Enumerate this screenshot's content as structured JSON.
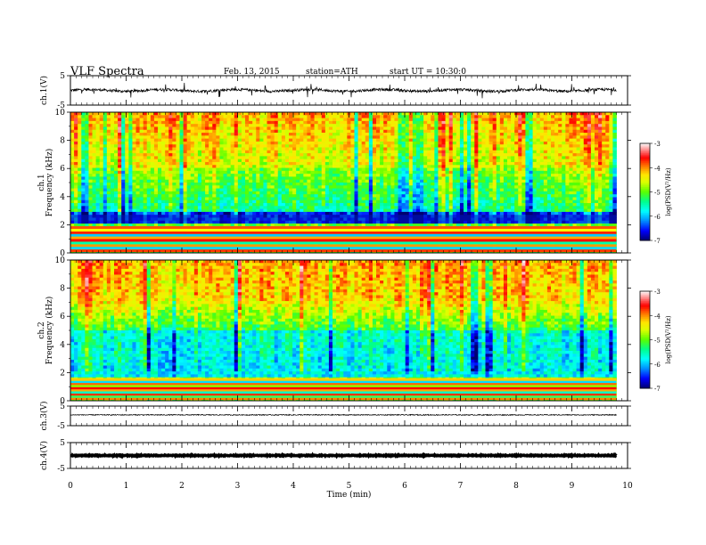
{
  "header": {
    "title": "VLF  Spectra",
    "date": "Feb. 13, 2015",
    "station": "station=ATH",
    "start": "start  UT =   10:30:0"
  },
  "chart_data": [
    {
      "type": "line",
      "panel": "ch1-waveform",
      "ylabel": "ch.1(V)",
      "ylim": [
        -5,
        5
      ],
      "yticks": [
        "5",
        "-5"
      ],
      "xlim": [
        0,
        10
      ],
      "series": [
        {
          "values_summary": "noisy waveform centered near 0 V, mostly within ±1 V, spikes to about ±2.5 V",
          "color": "#000000"
        }
      ]
    },
    {
      "type": "heatmap",
      "panel": "ch1-spectrogram",
      "ylabel": "Frequency  (kHz)",
      "channel_label": "ch.1",
      "ylim": [
        0,
        10
      ],
      "yticks": [
        "0",
        "2",
        "4",
        "6",
        "8",
        "10"
      ],
      "xlim": [
        0,
        10
      ],
      "data_end_min": 9.8,
      "colorbar": {
        "label": "log(PSD(V²/Hz)",
        "range": [
          -7,
          -3
        ],
        "ticks": [
          "-3",
          "-4",
          "-5",
          "-6",
          "-7"
        ]
      },
      "description_bands": [
        {
          "freq_khz": [
            0,
            1.8
          ],
          "level": "horizontal lines, mixed orange/cyan/red"
        },
        {
          "freq_khz": [
            1.8,
            3
          ],
          "level": -6.5
        },
        {
          "freq_khz": [
            3,
            6
          ],
          "level": -5.5
        },
        {
          "freq_khz": [
            6,
            10
          ],
          "level": -4.2
        }
      ]
    },
    {
      "type": "heatmap",
      "panel": "ch2-spectrogram",
      "ylabel": "Frequency  (kHz)",
      "channel_label": "ch.2",
      "ylim": [
        0,
        10
      ],
      "yticks": [
        "0",
        "2",
        "4",
        "6",
        "8",
        "10"
      ],
      "xlim": [
        0,
        10
      ],
      "data_end_min": 9.8,
      "colorbar": {
        "label": "log(PSD(V²/Hz)",
        "range": [
          -7,
          -3
        ],
        "ticks": [
          "-3",
          "-4",
          "-5",
          "-6",
          "-7"
        ]
      },
      "description_bands": [
        {
          "freq_khz": [
            0,
            1.5
          ],
          "level": "horizontal lines, orange/green/red"
        },
        {
          "freq_khz": [
            1.5,
            5
          ],
          "level": -5.8
        },
        {
          "freq_khz": [
            5,
            7
          ],
          "level": -5
        },
        {
          "freq_khz": [
            7,
            10
          ],
          "level": -4
        }
      ]
    },
    {
      "type": "line",
      "panel": "ch3-waveform",
      "ylabel": "ch.3(V)",
      "ylim": [
        -5,
        5
      ],
      "yticks": [
        "5",
        "-5"
      ],
      "xlim": [
        0,
        10
      ],
      "series": [
        {
          "values_summary": "flat trace near +0.5 V with slight noise",
          "color": "#000000"
        }
      ]
    },
    {
      "type": "line",
      "panel": "ch4-waveform",
      "ylabel": "ch.4(V)",
      "ylim": [
        -5,
        5
      ],
      "yticks": [
        "5",
        "-5"
      ],
      "xlim": [
        0,
        10
      ],
      "series": [
        {
          "values_summary": "thick flat trace near 0 V",
          "color": "#000000"
        }
      ]
    }
  ],
  "x_axis": {
    "label": "Time  (min)",
    "ticks": [
      "0",
      "1",
      "2",
      "3",
      "4",
      "5",
      "6",
      "7",
      "8",
      "9",
      "10"
    ],
    "range": [
      0,
      10
    ]
  },
  "colors": {
    "colormap": [
      "#ff0000",
      "#ff7f00",
      "#ffff00",
      "#7fff00",
      "#00ff00",
      "#00ff99",
      "#00ffff",
      "#0099ff",
      "#0000ff",
      "#000080"
    ]
  }
}
